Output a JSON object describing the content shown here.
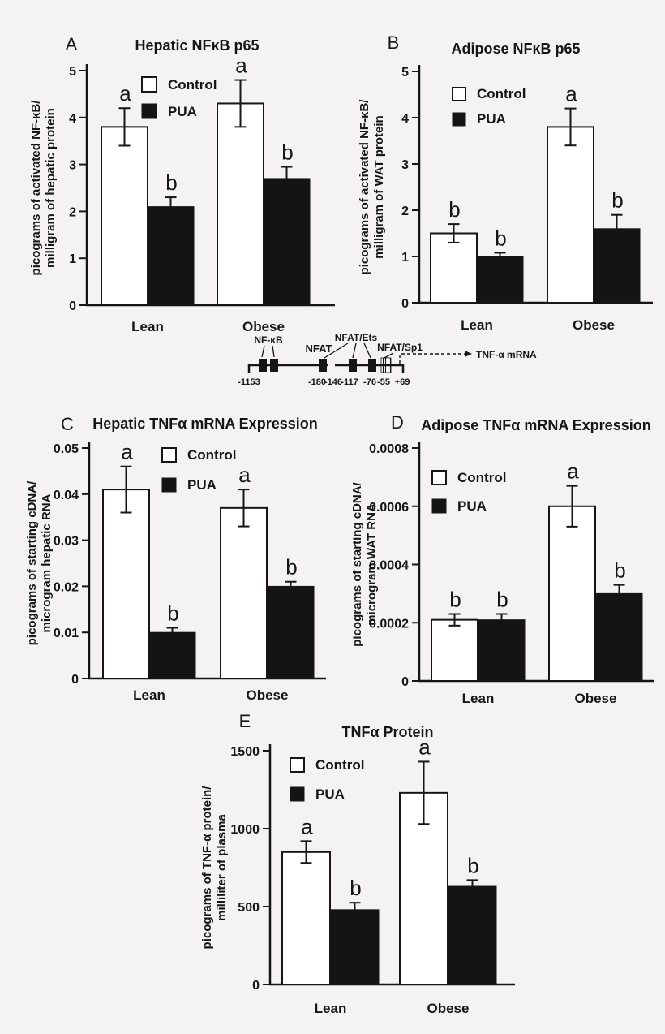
{
  "figure": {
    "background": "#f4f2f3",
    "ink": "#161616",
    "bar_fill_control": "#ffffff",
    "bar_fill_pua": "#141414",
    "group_labels": [
      "Lean",
      "Obese"
    ]
  },
  "chart_data": [
    {
      "id": "A",
      "type": "bar",
      "panel_letter": "A",
      "title": "Hepatic NFκB p65",
      "ylabel_lines": [
        "picograms of activated NF-κB/",
        "milligram of hepatic protein"
      ],
      "ylim": [
        0,
        5
      ],
      "yticks": [
        0,
        1,
        2,
        3,
        4,
        5
      ],
      "ytick_labels": [
        "0",
        "1",
        "2",
        "3",
        "4",
        "5"
      ],
      "categories": [
        "Lean",
        "Obese"
      ],
      "legend": [
        "Control",
        "PUA"
      ],
      "series": [
        {
          "name": "Control",
          "values": [
            3.8,
            4.3
          ],
          "errors": [
            0.4,
            0.5
          ],
          "sig": [
            "a",
            "a"
          ]
        },
        {
          "name": "PUA",
          "values": [
            2.1,
            2.7
          ],
          "errors": [
            0.2,
            0.25
          ],
          "sig": [
            "b",
            "b"
          ]
        }
      ]
    },
    {
      "id": "B",
      "type": "bar",
      "panel_letter": "B",
      "title": "Adipose NFκB p65",
      "ylabel_lines": [
        "picograms of activated NF-κB/",
        "milligram of WAT protein"
      ],
      "ylim": [
        0,
        5
      ],
      "yticks": [
        0,
        1,
        2,
        3,
        4,
        5
      ],
      "ytick_labels": [
        "0",
        "1",
        "2",
        "3",
        "4",
        "5"
      ],
      "categories": [
        "Lean",
        "Obese"
      ],
      "legend": [
        "Control",
        "PUA"
      ],
      "series": [
        {
          "name": "Control",
          "values": [
            1.5,
            3.8
          ],
          "errors": [
            0.2,
            0.4
          ],
          "sig": [
            "b",
            "a"
          ]
        },
        {
          "name": "PUA",
          "values": [
            1.0,
            1.6
          ],
          "errors": [
            0.08,
            0.3
          ],
          "sig": [
            "b",
            "b"
          ]
        }
      ]
    },
    {
      "id": "C",
      "type": "bar",
      "panel_letter": "C",
      "title": "Hepatic TNFα mRNA Expression",
      "ylabel_lines": [
        "picograms of starting cDNA/",
        "microgram hepatic RNA"
      ],
      "ylim": [
        0,
        0.05
      ],
      "yticks": [
        0,
        0.01,
        0.02,
        0.03,
        0.04,
        0.05
      ],
      "ytick_labels": [
        "0",
        "0.01",
        "0.02",
        "0.03",
        "0.04",
        "0.05"
      ],
      "categories": [
        "Lean",
        "Obese"
      ],
      "legend": [
        "Control",
        "PUA"
      ],
      "series": [
        {
          "name": "Control",
          "values": [
            0.041,
            0.037
          ],
          "errors": [
            0.005,
            0.004
          ],
          "sig": [
            "a",
            "a"
          ]
        },
        {
          "name": "PUA",
          "values": [
            0.01,
            0.02
          ],
          "errors": [
            0.001,
            0.001
          ],
          "sig": [
            "b",
            "b"
          ]
        }
      ]
    },
    {
      "id": "D",
      "type": "bar",
      "panel_letter": "D",
      "title": "Adipose TNFα mRNA Expression",
      "ylabel_lines": [
        "picograms of starting cDNA/",
        "microgram WAT RNA"
      ],
      "ylim": [
        0,
        0.0008
      ],
      "yticks": [
        0,
        0.0002,
        0.0004,
        0.0006,
        0.0008
      ],
      "ytick_labels": [
        "0",
        "0.0002",
        "0.0004",
        "0.0006",
        "0.0008"
      ],
      "categories": [
        "Lean",
        "Obese"
      ],
      "legend": [
        "Control",
        "PUA"
      ],
      "series": [
        {
          "name": "Control",
          "values": [
            0.00021,
            0.0006
          ],
          "errors": [
            2e-05,
            7e-05
          ],
          "sig": [
            "b",
            "a"
          ]
        },
        {
          "name": "PUA",
          "values": [
            0.00021,
            0.0003
          ],
          "errors": [
            2e-05,
            3e-05
          ],
          "sig": [
            "b",
            "b"
          ]
        }
      ]
    },
    {
      "id": "E",
      "type": "bar",
      "panel_letter": "E",
      "title": "TNFα Protein",
      "ylabel_lines": [
        "picograms of TNF-α protein/",
        "milliliter of plasma"
      ],
      "ylim": [
        0,
        1500
      ],
      "yticks": [
        0,
        500,
        1000,
        1500
      ],
      "ytick_labels": [
        "0",
        "500",
        "1000",
        "1500"
      ],
      "categories": [
        "Lean",
        "Obese"
      ],
      "legend": [
        "Control",
        "PUA"
      ],
      "series": [
        {
          "name": "Control",
          "values": [
            850,
            1230
          ],
          "errors": [
            70,
            200
          ],
          "sig": [
            "a",
            "a"
          ]
        },
        {
          "name": "PUA",
          "values": [
            480,
            630
          ],
          "errors": [
            45,
            40
          ],
          "sig": [
            "b",
            "b"
          ]
        }
      ]
    }
  ],
  "promoter_diagram": {
    "site_labels": [
      "NF-κB",
      "NFAT",
      "NFAT/Ets",
      "NFAT/Sp1"
    ],
    "position_labels": [
      "-1153",
      "-180",
      "-146",
      "-117",
      "-76",
      "-55",
      "+69"
    ],
    "arrow_label": "TNF-α mRNA"
  }
}
